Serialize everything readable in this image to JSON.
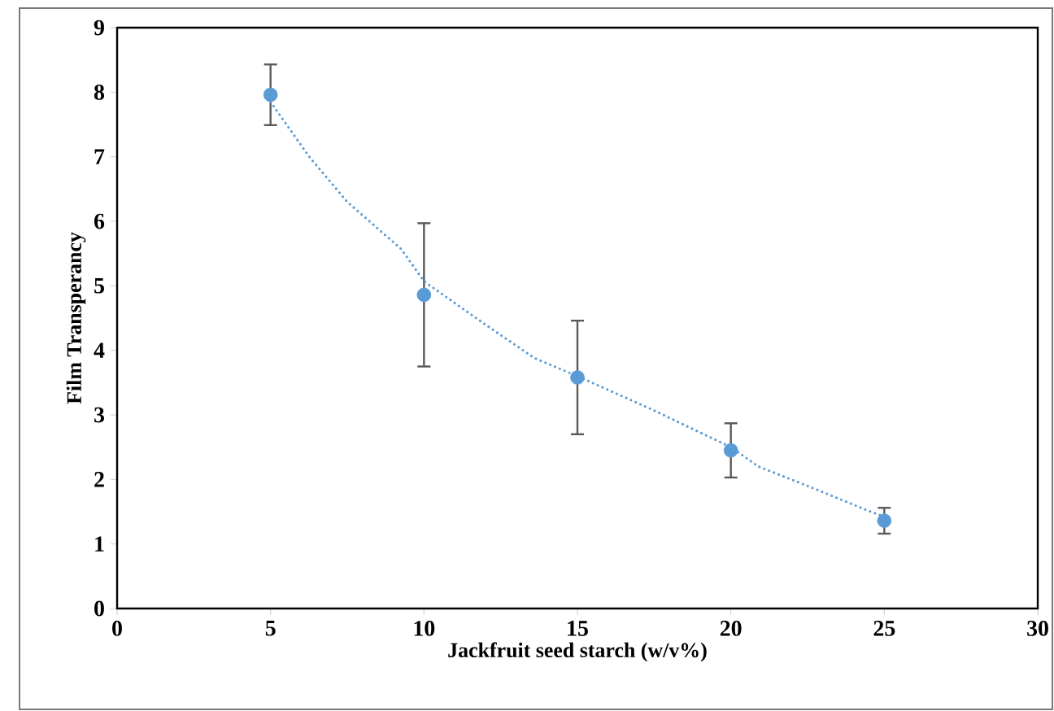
{
  "chart_data": {
    "type": "scatter",
    "xlabel": "Jackfruit seed starch (w/v%)",
    "ylabel": "Film Transperancy",
    "xlim": [
      0,
      30
    ],
    "xticks": [
      0,
      5,
      10,
      15,
      20,
      25,
      30
    ],
    "ylim": [
      0,
      9
    ],
    "yticks": [
      0,
      1,
      2,
      3,
      4,
      5,
      6,
      7,
      8,
      9
    ],
    "grid": false,
    "series": [
      {
        "marker": "circle",
        "color": "#5b9bd5",
        "x": [
          5,
          10,
          15,
          20,
          25
        ],
        "values": [
          7.96,
          4.86,
          3.58,
          2.45,
          1.36
        ],
        "errors": [
          0.47,
          1.11,
          0.88,
          0.42,
          0.2
        ]
      },
      {
        "type": "line",
        "marker": "none",
        "line_style": "dotted",
        "color": "#5b9bd5",
        "x": [
          5,
          6.26,
          7.5,
          9.26,
          10,
          12,
          13.6,
          15,
          17.4,
          20,
          20.9,
          22.5,
          24.4,
          25
        ],
        "values": [
          7.85,
          7.0,
          6.3,
          5.57,
          5.07,
          4.4,
          3.88,
          3.6,
          3.09,
          2.5,
          2.2,
          1.9,
          1.53,
          1.42
        ]
      }
    ]
  }
}
